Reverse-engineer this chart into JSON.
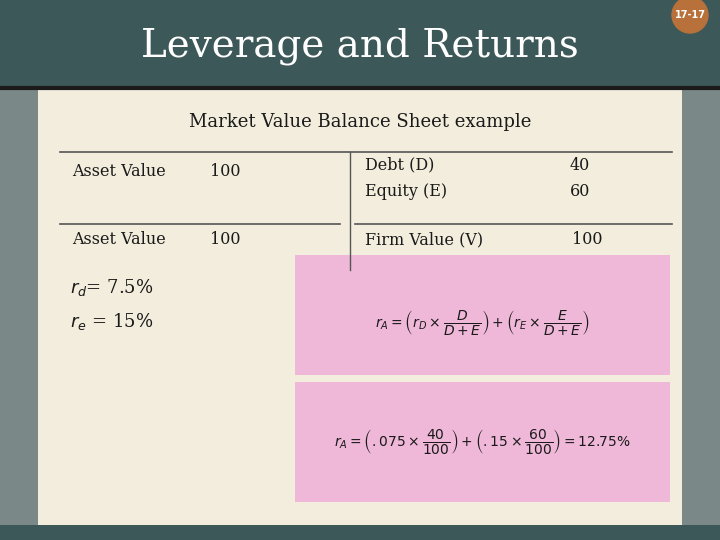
{
  "title": "Leverage and Returns",
  "subtitle": "Market Value Balance Sheet example",
  "slide_badge": "17-17",
  "header_bg": "#3d5858",
  "content_bg": "#f2eddc",
  "badge_color": "#b8713a",
  "title_color": "#ffffff",
  "subtitle_color": "#1a1a1a",
  "formula_bg": "#f0b8d8",
  "content_text_color": "#1a1a1a",
  "sidebar_color": "#7a8888",
  "divider_color": "#c8b060",
  "table_line_color": "#555555"
}
